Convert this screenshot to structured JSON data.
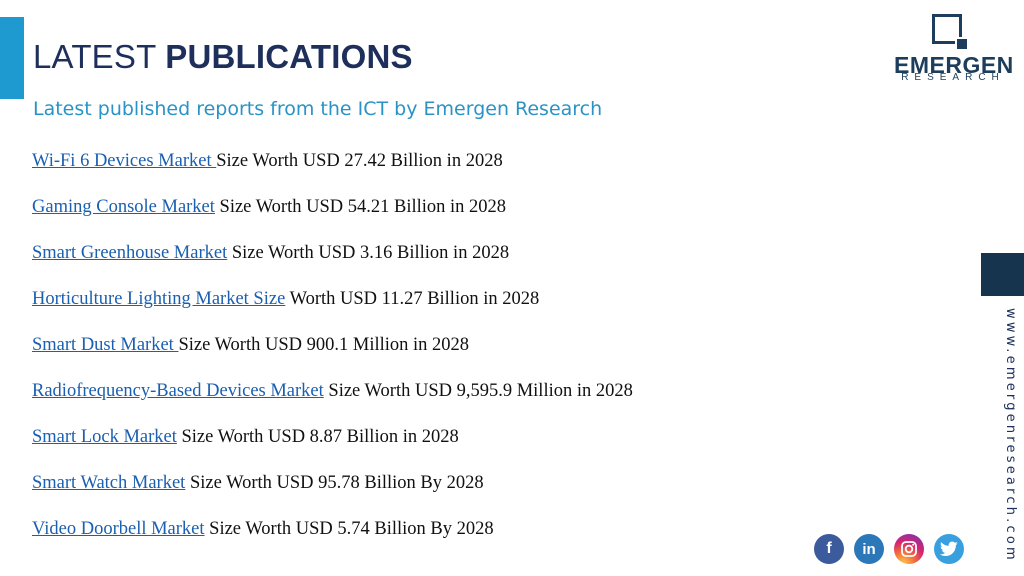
{
  "header": {
    "title_light": "LATEST",
    "title_bold": "PUBLICATIONS",
    "subtitle": "Latest published reports from the ICT by Emergen Research"
  },
  "logo": {
    "name": "EMERGEN",
    "sub": "RESEARCH"
  },
  "side": {
    "url": "www.emergenresearch.com"
  },
  "publications": [
    {
      "link": "Wi-Fi 6 Devices Market ",
      "text": "Size Worth USD 27.42 Billion in 2028"
    },
    {
      "link": "Gaming Console Market",
      "text": " Size Worth USD 54.21 Billion in 2028"
    },
    {
      "link": "Smart Greenhouse Market",
      "text": " Size Worth USD 3.16 Billion in 2028"
    },
    {
      "link": "Horticulture Lighting Market Size",
      "text": " Worth USD 11.27 Billion in 2028"
    },
    {
      "link": "Smart Dust Market ",
      "text": "Size Worth USD 900.1 Million in 2028"
    },
    {
      "link": "Radiofrequency-Based Devices Market",
      "text": " Size Worth USD 9,595.9 Million in 2028"
    },
    {
      "link": "Smart Lock Market",
      "text": " Size Worth USD 8.87 Billion in 2028"
    },
    {
      "link": "Smart Watch Market",
      "text": " Size Worth USD 95.78 Billion By 2028"
    },
    {
      "link": "Video Doorbell Market",
      "text": " Size Worth USD 5.74 Billion By 2028"
    }
  ],
  "socials": [
    {
      "icon": "facebook-icon",
      "glyph": "f"
    },
    {
      "icon": "linkedin-icon",
      "glyph": "in"
    },
    {
      "icon": "instagram-icon",
      "glyph": "◎"
    },
    {
      "icon": "twitter-icon",
      "glyph": "🐦"
    }
  ]
}
